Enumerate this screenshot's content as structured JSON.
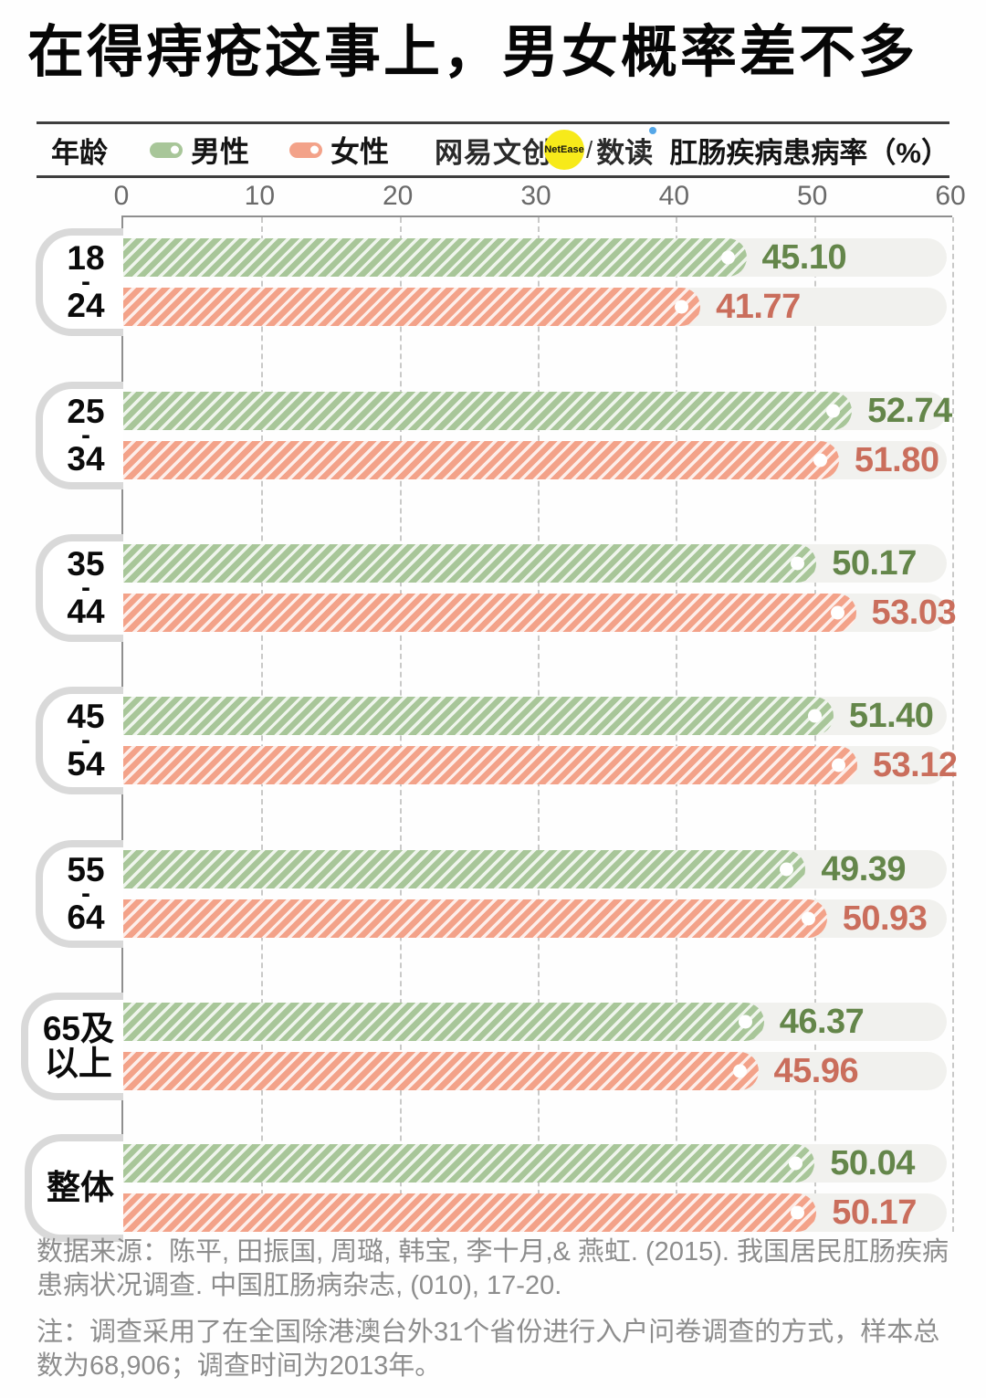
{
  "title": "在得痔疮这事上，男女概率差不多",
  "legend": {
    "age_label": "年龄",
    "male_label": "男性",
    "female_label": "女性",
    "brand": {
      "name": "网易文创",
      "badge": "NetEase",
      "divider": "/",
      "sub": "数读"
    },
    "axis_title": "肛肠疾病患病率（%）"
  },
  "colors": {
    "male_bar": "#a8c699",
    "female_bar": "#f3a289",
    "male_text": "#64864a",
    "female_text": "#ca6e5c",
    "track": "#f1f1ee",
    "grid": "#c9c9c8",
    "axis_line": "#8f8f8f",
    "badge_yellow": "#f7ea1a",
    "dushu_dot_blue": "#55a7e8"
  },
  "chart_data": {
    "type": "bar",
    "orientation": "horizontal",
    "title": "在得痔疮这事上，男女概率差不多",
    "xlabel": "肛肠疾病患病率（%）",
    "ylabel": "年龄",
    "xlim": [
      0,
      60
    ],
    "x_ticks": [
      0,
      10,
      20,
      30,
      40,
      50,
      60
    ],
    "grid": "dashed-vertical",
    "legend_position": "top",
    "series_names": [
      "男性",
      "女性"
    ],
    "categories": [
      "18-24",
      "25-34",
      "35-44",
      "45-54",
      "55-64",
      "65及以上",
      "整体"
    ],
    "rows": [
      {
        "label_lines": [
          "18",
          "-",
          "24"
        ],
        "male": 45.1,
        "female": 41.77
      },
      {
        "label_lines": [
          "25",
          "-",
          "34"
        ],
        "male": 52.74,
        "female": 51.8
      },
      {
        "label_lines": [
          "35",
          "-",
          "44"
        ],
        "male": 50.17,
        "female": 53.03
      },
      {
        "label_lines": [
          "45",
          "-",
          "54"
        ],
        "male": 51.4,
        "female": 53.12
      },
      {
        "label_lines": [
          "55",
          "-",
          "64"
        ],
        "male": 49.39,
        "female": 50.93
      },
      {
        "label_lines": [
          "65及",
          "以上"
        ],
        "male": 46.37,
        "female": 45.96
      },
      {
        "label_lines": [
          "整体"
        ],
        "male": 50.04,
        "female": 50.17
      }
    ]
  },
  "footer": {
    "source": "数据来源：陈平, 田振国, 周璐, 韩宝, 李十月,& 燕虹. (2015). 我国居民肛肠疾病患病状况调查. 中国肛肠病杂志, (010), 17-20.",
    "note": "注：调查采用了在全国除港澳台外31个省份进行入户问卷调查的方式，样本总数为68,906；调查时间为2013年。"
  }
}
